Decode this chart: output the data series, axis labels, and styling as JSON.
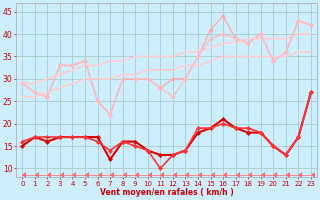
{
  "xlabel": "Vent moyen/en rafales ( km/h )",
  "xlim": [
    -0.5,
    23.5
  ],
  "ylim": [
    8,
    47
  ],
  "yticks": [
    10,
    15,
    20,
    25,
    30,
    35,
    40,
    45
  ],
  "xticks": [
    0,
    1,
    2,
    3,
    4,
    5,
    6,
    7,
    8,
    9,
    10,
    11,
    12,
    13,
    14,
    15,
    16,
    17,
    18,
    19,
    20,
    21,
    22,
    23
  ],
  "background_color": "#cceeff",
  "grid_color": "#aacccc",
  "lines": [
    {
      "x": [
        0,
        1,
        2,
        3,
        4,
        5,
        6,
        7,
        8,
        9,
        10,
        11,
        12,
        13,
        14,
        15,
        16,
        17,
        18,
        19,
        20,
        21,
        22,
        23
      ],
      "y": [
        29,
        27,
        26,
        33,
        33,
        34,
        25,
        22,
        30,
        30,
        30,
        28,
        30,
        30,
        35,
        41,
        44,
        39,
        38,
        40,
        34,
        36,
        43,
        42
      ],
      "color": "#ffaaaa",
      "lw": 1.0,
      "marker": "D",
      "ms": 2.5
    },
    {
      "x": [
        0,
        1,
        2,
        3,
        4,
        5,
        6,
        7,
        8,
        9,
        10,
        11,
        12,
        13,
        14,
        15,
        16,
        17,
        18,
        19,
        20,
        21,
        22,
        23
      ],
      "y": [
        29,
        27,
        26,
        33,
        33,
        34,
        25,
        22,
        30,
        30,
        30,
        28,
        26,
        30,
        35,
        39,
        40,
        39,
        38,
        40,
        34,
        36,
        43,
        42
      ],
      "color": "#ffbbbb",
      "lw": 1.0,
      "marker": "D",
      "ms": 2.5
    },
    {
      "x": [
        0,
        1,
        2,
        3,
        4,
        5,
        6,
        7,
        8,
        9,
        10,
        11,
        12,
        13,
        14,
        15,
        16,
        17,
        18,
        19,
        20,
        21,
        22,
        23
      ],
      "y": [
        29,
        29,
        30,
        31,
        32,
        33,
        33,
        34,
        34,
        35,
        35,
        35,
        35,
        36,
        36,
        37,
        38,
        38,
        39,
        39,
        39,
        39,
        40,
        40
      ],
      "color": "#ffcccc",
      "lw": 1.2,
      "marker": null,
      "ms": 0
    },
    {
      "x": [
        0,
        1,
        2,
        3,
        4,
        5,
        6,
        7,
        8,
        9,
        10,
        11,
        12,
        13,
        14,
        15,
        16,
        17,
        18,
        19,
        20,
        21,
        22,
        23
      ],
      "y": [
        26,
        26,
        27,
        28,
        29,
        30,
        30,
        30,
        31,
        31,
        32,
        32,
        32,
        33,
        33,
        34,
        35,
        35,
        35,
        35,
        35,
        35,
        36,
        36
      ],
      "color": "#ffcccc",
      "lw": 1.2,
      "marker": null,
      "ms": 0
    },
    {
      "x": [
        0,
        1,
        2,
        3,
        4,
        5,
        6,
        7,
        8,
        9,
        10,
        11,
        12,
        13,
        14,
        15,
        16,
        17,
        18,
        19,
        20,
        21,
        22,
        23
      ],
      "y": [
        15,
        17,
        16,
        17,
        17,
        17,
        17,
        12,
        16,
        16,
        14,
        13,
        13,
        14,
        18,
        19,
        21,
        19,
        18,
        18,
        15,
        13,
        17,
        27
      ],
      "color": "#dd0000",
      "lw": 1.5,
      "marker": "D",
      "ms": 2.5
    },
    {
      "x": [
        0,
        1,
        2,
        3,
        4,
        5,
        6,
        7,
        8,
        9,
        10,
        11,
        12,
        13,
        14,
        15,
        16,
        17,
        18,
        19,
        20,
        21,
        22,
        23
      ],
      "y": [
        16,
        17,
        17,
        17,
        17,
        17,
        16,
        14,
        16,
        15,
        14,
        10,
        13,
        14,
        19,
        19,
        20,
        19,
        19,
        18,
        15,
        13,
        17,
        27
      ],
      "color": "#ff3333",
      "lw": 1.2,
      "marker": "D",
      "ms": 2.5
    },
    {
      "x": [
        0,
        1,
        2,
        3,
        4,
        5,
        6,
        7,
        8,
        9,
        10,
        11,
        12,
        13,
        14,
        15,
        16,
        17,
        18,
        19,
        20,
        21,
        22,
        23
      ],
      "y": [
        8.5,
        8.5,
        8.5,
        8.5,
        8.5,
        8.5,
        8.5,
        8.5,
        8.5,
        8.5,
        8.5,
        8.5,
        8.5,
        8.5,
        8.5,
        8.5,
        8.5,
        8.5,
        8.5,
        8.5,
        8.5,
        8.5,
        8.5,
        8.5
      ],
      "color": "#ff6666",
      "lw": 0.5,
      "marker": 4,
      "ms": 4
    }
  ]
}
